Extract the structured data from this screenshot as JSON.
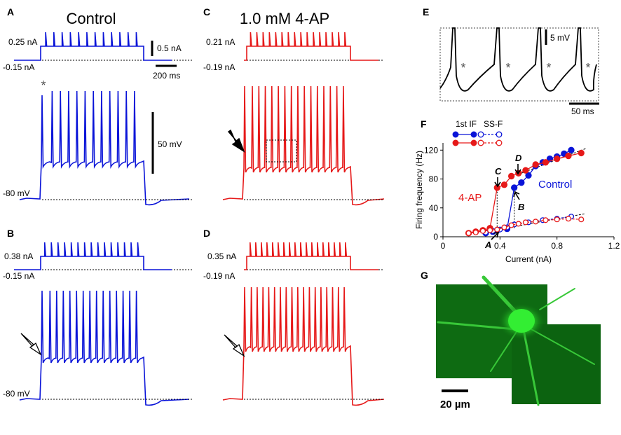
{
  "panel_labels": {
    "A": "A",
    "B": "B",
    "C": "C",
    "D": "D",
    "E": "E",
    "F": "F",
    "G": "G"
  },
  "titles": {
    "control": "Control",
    "fourap": "1.0 mM 4-AP"
  },
  "colors": {
    "control": "#0a14d8",
    "fourap": "#e61919",
    "fluor_bg": "#0e6b12",
    "fluor_cell": "#22ee22"
  },
  "panelA": {
    "step_high": "0.25 nA",
    "step_low": "-0.15 nA",
    "rmp": "-80 mV",
    "spikes_step": 12,
    "spikes_volt": 12
  },
  "panelB": {
    "step_high": "0.38 nA",
    "step_low": "-0.15 nA",
    "rmp": "-80 mV",
    "spikes_step": 15,
    "spikes_volt": 15
  },
  "panelC": {
    "step_high": "0.21 nA",
    "step_low": "-0.19 nA",
    "spikes_step": 16,
    "spikes_volt": 16
  },
  "panelD": {
    "step_high": "0.35 nA",
    "step_low": "-0.19 nA",
    "spikes_step": 18,
    "spikes_volt": 18
  },
  "scalebars": {
    "current": "0.5 nA",
    "time": "200 ms",
    "voltage": "50 mV",
    "e_voltage": "5 mV",
    "e_time": "50 ms",
    "g_length": "20 µm"
  },
  "panelE": {
    "asterisk": "*"
  },
  "star": "*",
  "chart_data": {
    "type": "scatter",
    "xlabel": "Current (nA)",
    "ylabel": "Firing frequency (Hz)",
    "xlim": [
      0,
      1.2
    ],
    "ylim": [
      0,
      130
    ],
    "xticks": [
      "0",
      "0.4",
      "0.8",
      "1.2"
    ],
    "yticks": [
      "0",
      "40",
      "80",
      "120"
    ],
    "legend": {
      "col1": "1st IF",
      "col2": "SS-F"
    },
    "curve_labels": {
      "fourap": "4-AP",
      "control": "Control"
    },
    "annotations": {
      "A": "A",
      "B": "B",
      "C": "C",
      "D": "D"
    },
    "series": [
      {
        "name": "Control 1st IF",
        "color": "#0a14d8",
        "filled": true,
        "x": [
          0.3,
          0.35,
          0.38,
          0.45,
          0.5,
          0.55,
          0.6,
          0.65,
          0.7,
          0.75,
          0.8,
          0.85,
          0.9
        ],
        "y": [
          5,
          7,
          9,
          11,
          68,
          75,
          85,
          98,
          103,
          108,
          111,
          115,
          120
        ]
      },
      {
        "name": "Control SS-F",
        "color": "#0a14d8",
        "filled": false,
        "x": [
          0.3,
          0.35,
          0.4,
          0.45,
          0.5,
          0.6,
          0.7,
          0.8,
          0.9
        ],
        "y": [
          6,
          8,
          10,
          13,
          17,
          20,
          23,
          25,
          28
        ]
      },
      {
        "name": "4-AP 1st IF",
        "color": "#e61919",
        "filled": true,
        "x": [
          0.18,
          0.23,
          0.28,
          0.33,
          0.38,
          0.43,
          0.48,
          0.53,
          0.58,
          0.65,
          0.72,
          0.8,
          0.88,
          0.97
        ],
        "y": [
          5,
          7,
          9,
          12,
          68,
          72,
          84,
          88,
          92,
          100,
          103,
          108,
          112,
          116
        ]
      },
      {
        "name": "4-AP SS-F",
        "color": "#e61919",
        "filled": false,
        "x": [
          0.18,
          0.23,
          0.28,
          0.33,
          0.38,
          0.43,
          0.48,
          0.53,
          0.58,
          0.65,
          0.72,
          0.8,
          0.88,
          0.97
        ],
        "y": [
          5,
          6,
          8,
          9,
          10,
          13,
          16,
          18,
          20,
          21,
          23,
          24,
          25,
          24
        ]
      }
    ]
  }
}
